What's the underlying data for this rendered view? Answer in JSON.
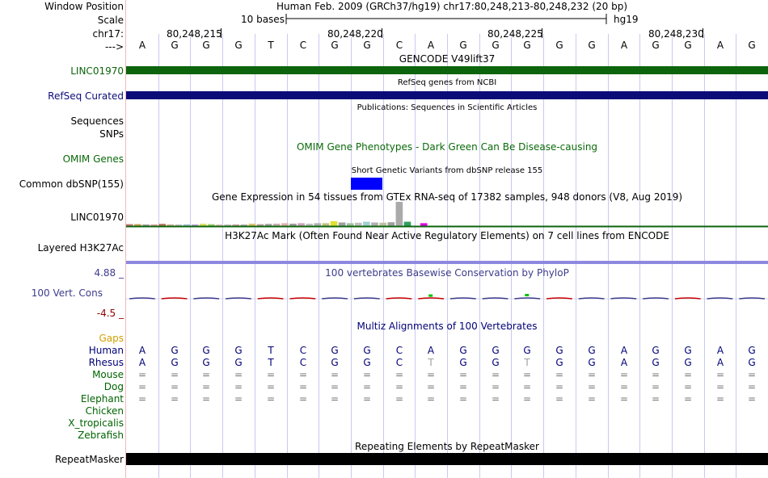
{
  "header": {
    "position_label": "Window Position",
    "position_text": "Human Feb. 2009 (GRCh37/hg19)   chr17:80,248,213-80,248,232 (20 bp)",
    "scale_label": "Scale",
    "scale_text": "10 bases",
    "assembly": "hg19",
    "chrom_label": "chr17:",
    "arrow_label": "--->",
    "ticks": [
      "80,248,215",
      "80,248,220",
      "80,248,225",
      "80,248,230"
    ]
  },
  "bases": [
    "A",
    "G",
    "G",
    "G",
    "T",
    "C",
    "G",
    "G",
    "C",
    "A",
    "G",
    "G",
    "G",
    "G",
    "G",
    "A",
    "G",
    "G",
    "A",
    "G"
  ],
  "colors": {
    "gencode": "#0c640c",
    "refseq": "#0c0c78",
    "omim": "#0a6a0a",
    "dbsnp": "#0000ff",
    "h3k27ac": "#8c88e0",
    "conservation": "#3c3c8c",
    "gaps": "#d2a000",
    "species_label": "#000078",
    "species_green": "#006400",
    "repeatmasker": "#000000",
    "grid": "#c9c9f0"
  },
  "tracks": {
    "gencode_title": "GENCODE V49lift37",
    "gencode_item": "LINC01970",
    "refseq_title": "RefSeq genes from NCBI",
    "refseq_label": "RefSeq Curated",
    "publications_title": "Publications: Sequences in Scientific Articles",
    "sequences_label": "Sequences",
    "snps_label": "SNPs",
    "omim_label": "OMIM Genes",
    "omim_title": "OMIM Gene Phenotypes - Dark Green Can Be Disease-causing",
    "dbsnp_title": "Short Genetic Variants from dbSNP release 155",
    "dbsnp_label": "Common dbSNP(155)",
    "gtex_title": "Gene Expression in 54 tissues from GTEx RNA-seq of 17382 samples, 948 donors (V8, Aug 2019)",
    "gtex_label": "LINC01970",
    "h3k_title": "H3K27Ac Mark (Often Found Near Active Regulatory Elements) on 7 cell lines from ENCODE",
    "h3k_label": "Layered H3K27Ac",
    "cons_title": "100 vertebrates Basewise Conservation by PhyloP",
    "cons_max": "4.88 _",
    "cons_label": "100 Vert. Cons",
    "cons_min": "-4.5 _",
    "gaps_label": "Gaps",
    "multiz_title": "Multiz Alignments of 100 Vertebrates",
    "repeat_title": "Repeating Elements by RepeatMasker",
    "repeat_label": "RepeatMasker"
  },
  "species": [
    {
      "name": "Human",
      "row": [
        "A",
        "G",
        "G",
        "G",
        "T",
        "C",
        "G",
        "G",
        "C",
        "A",
        "G",
        "G",
        "G",
        "G",
        "G",
        "A",
        "G",
        "G",
        "A",
        "G"
      ]
    },
    {
      "name": "Rhesus",
      "row": [
        "A",
        "G",
        "G",
        "G",
        "T",
        "C",
        "G",
        "G",
        "C",
        "T",
        "G",
        "G",
        "T",
        "G",
        "G",
        "A",
        "G",
        "G",
        "A",
        "G"
      ]
    },
    {
      "name": "Mouse",
      "row": [
        "=",
        "=",
        "=",
        "=",
        "=",
        "=",
        "=",
        "=",
        "=",
        "=",
        "=",
        "=",
        "=",
        "=",
        "=",
        "=",
        "=",
        "=",
        "=",
        "="
      ]
    },
    {
      "name": "Dog",
      "row": [
        "=",
        "=",
        "=",
        "=",
        "=",
        "=",
        "=",
        "=",
        "=",
        "=",
        "=",
        "=",
        "=",
        "=",
        "=",
        "=",
        "=",
        "=",
        "=",
        "="
      ]
    },
    {
      "name": "Elephant",
      "row": [
        "=",
        "=",
        "=",
        "=",
        "=",
        "=",
        "=",
        "=",
        "=",
        "=",
        "=",
        "=",
        "=",
        "=",
        "=",
        "=",
        "=",
        "=",
        "=",
        "="
      ]
    },
    {
      "name": "Chicken",
      "row": []
    },
    {
      "name": "X_tropicalis",
      "row": []
    },
    {
      "name": "Zebrafish",
      "row": []
    }
  ],
  "gtex_bars": [
    {
      "color": "#c87878",
      "value": 0.08
    },
    {
      "color": "#c8a050",
      "value": 0.08
    },
    {
      "color": "#a0a0a0",
      "value": 0.06
    },
    {
      "color": "#e0a0a0",
      "value": 0.07
    },
    {
      "color": "#b07050",
      "value": 0.09
    },
    {
      "color": "#d0b090",
      "value": 0.07
    },
    {
      "color": "#c0c0c0",
      "value": 0.06
    },
    {
      "color": "#9bbcd8",
      "value": 0.07
    },
    {
      "color": "#b8a0d0",
      "value": 0.06
    },
    {
      "color": "#e0e060",
      "value": 0.1
    },
    {
      "color": "#a0d070",
      "value": 0.08
    },
    {
      "color": "#e0c0c0",
      "value": 0.07
    },
    {
      "color": "#c0c0c0",
      "value": 0.06
    },
    {
      "color": "#d0a0a0",
      "value": 0.07
    },
    {
      "color": "#b0b0b0",
      "value": 0.06
    },
    {
      "color": "#e0c070",
      "value": 0.1
    },
    {
      "color": "#c0a0a0",
      "value": 0.08
    },
    {
      "color": "#a0a0a0",
      "value": 0.09
    },
    {
      "color": "#c8b0b0",
      "value": 0.1
    },
    {
      "color": "#e0b0b0",
      "value": 0.12
    },
    {
      "color": "#a0a0a0",
      "value": 0.1
    },
    {
      "color": "#d0a0c0",
      "value": 0.12
    },
    {
      "color": "#c0c0c0",
      "value": 0.1
    },
    {
      "color": "#b0b0b0",
      "value": 0.12
    },
    {
      "color": "#c0c080",
      "value": 0.12
    },
    {
      "color": "#e0e030",
      "value": 0.2
    },
    {
      "color": "#a0a0a0",
      "value": 0.15
    },
    {
      "color": "#a0c0a0",
      "value": 0.12
    },
    {
      "color": "#c0c0c0",
      "value": 0.14
    },
    {
      "color": "#a0d0d0",
      "value": 0.18
    },
    {
      "color": "#b0b0b0",
      "value": 0.15
    },
    {
      "color": "#c0c0a0",
      "value": 0.14
    },
    {
      "color": "#a0a0a0",
      "value": 0.16
    },
    {
      "color": "#aaaaaa",
      "value": 1.0
    },
    {
      "color": "#30a060",
      "value": 0.18
    },
    {
      "color": "#ffffff",
      "value": 0.0
    },
    {
      "color": "#e000e0",
      "value": 0.12
    }
  ],
  "phylop": [
    0.05,
    -0.05,
    0.0,
    -0.1,
    0.0,
    0.15,
    -0.1,
    0.05,
    0.0,
    0.45,
    -0.2,
    0.0,
    0.5,
    -0.1,
    0.05,
    -0.1,
    0.0,
    -0.05,
    0.05,
    0.0
  ]
}
